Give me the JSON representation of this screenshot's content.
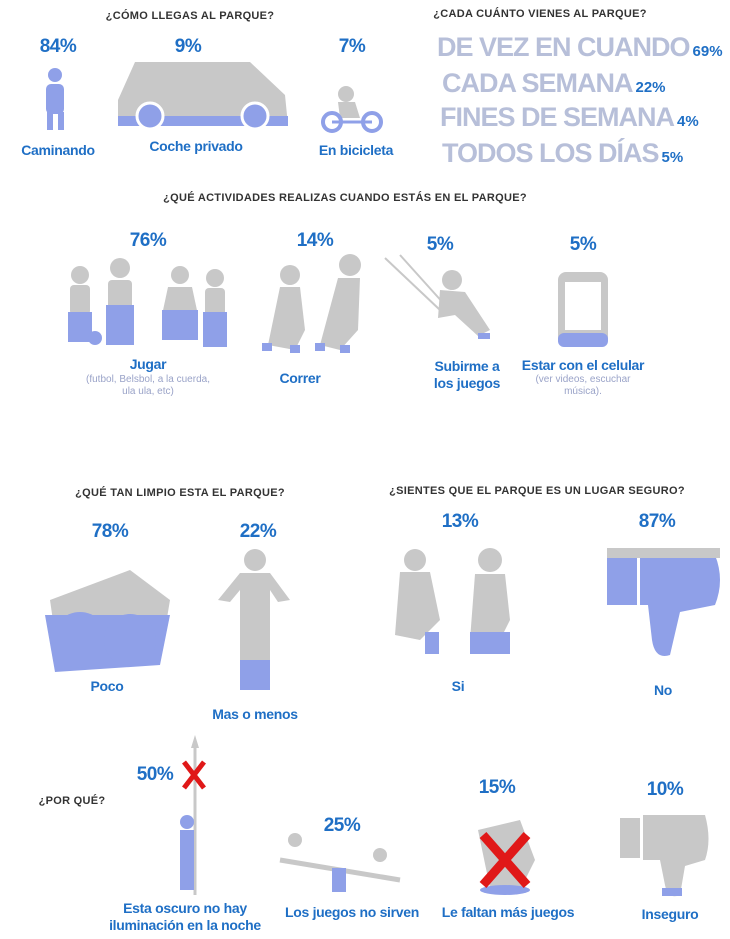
{
  "transport": {
    "title": "¿CÓMO LLEGAS AL PARQUE?",
    "items": [
      {
        "pct": "84%",
        "label": "Caminando"
      },
      {
        "pct": "9%",
        "label": "Coche privado"
      },
      {
        "pct": "7%",
        "label": "En bicicleta"
      }
    ]
  },
  "frequency": {
    "title": "¿CADA CUÁNTO VIENES AL PARQUE?",
    "items": [
      {
        "label": "DE VEZ EN CUANDO",
        "pct": "69%"
      },
      {
        "label": "CADA SEMANA",
        "pct": "22%"
      },
      {
        "label": "FINES DE SEMANA",
        "pct": "4%"
      },
      {
        "label": "TODOS LOS DÍAS",
        "pct": "5%"
      }
    ]
  },
  "activities": {
    "title": "¿QUÉ ACTIVIDADES REALIZAS CUANDO ESTÁS EN EL PARQUE?",
    "items": [
      {
        "pct": "76%",
        "label": "Jugar",
        "note": "(futbol, Belsbol, a la cuerda, ula ula, etc)"
      },
      {
        "pct": "14%",
        "label": "Correr"
      },
      {
        "pct": "5%",
        "label": "Subirme a los juegos"
      },
      {
        "pct": "5%",
        "label": "Estar con el celular",
        "note": "(ver videos, escuchar música)."
      }
    ]
  },
  "cleanliness": {
    "title": "¿QUÉ TAN LIMPIO ESTA EL PARQUE?",
    "items": [
      {
        "pct": "78%",
        "label": "Poco"
      },
      {
        "pct": "22%",
        "label": "Mas o menos"
      }
    ]
  },
  "safety": {
    "title": "¿SIENTES QUE EL PARQUE ES UN LUGAR SEGURO?",
    "items": [
      {
        "pct": "13%",
        "label": "Si"
      },
      {
        "pct": "87%",
        "label": "No"
      }
    ]
  },
  "why": {
    "title": "¿POR QUÉ?",
    "items": [
      {
        "pct": "50%",
        "label": "Esta oscuro no hay iluminación  en la noche"
      },
      {
        "pct": "25%",
        "label": "Los juegos no sirven"
      },
      {
        "pct": "15%",
        "label": "Le faltan más juegos"
      },
      {
        "pct": "10%",
        "label": "Inseguro"
      }
    ]
  }
}
